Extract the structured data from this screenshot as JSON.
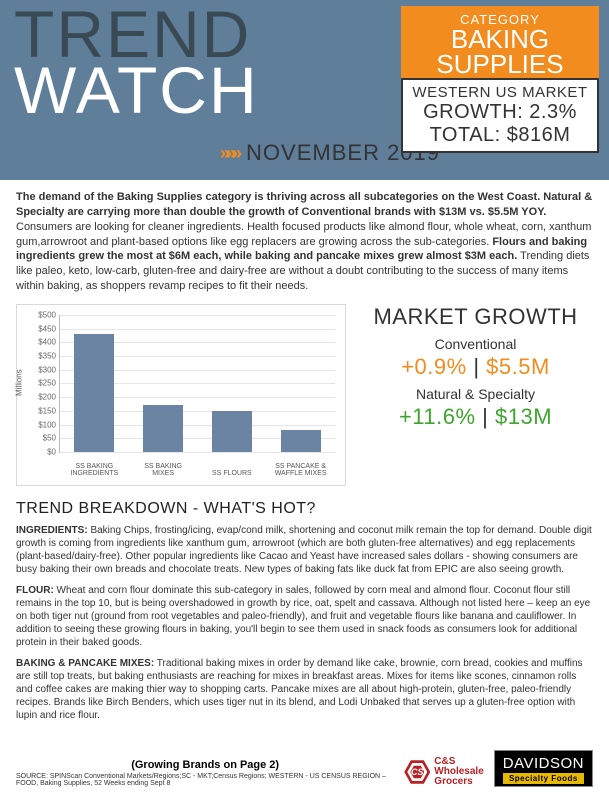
{
  "header": {
    "title_line1": "TREND",
    "title_line2": "WATCH",
    "subtitle": "NOVEMBER 2019",
    "chevrons": "»»»"
  },
  "category_box": {
    "label": "CATEGORY",
    "name_line1": "BAKING",
    "name_line2": "SUPPLIES"
  },
  "market_box": {
    "market": "WESTERN US MARKET",
    "growth": "GROWTH: 2.3%",
    "total": "TOTAL: $816M"
  },
  "intro": {
    "bold1": "The demand of the Baking Supplies category is thriving across all subcategories on the West Coast. Natural & Specialty are carrying more than double the growth of Conventional brands with $13M vs. $5.5M YOY.",
    "text1": " Consumers are looking for cleaner ingredients. Health focused products like almond flour, whole wheat, corn, xanthum gum,arrowroot and plant-based options like egg replacers are growing across the sub-categories. ",
    "bold2": "Flours and baking ingredients grew the most at $6M each, while baking and pancake mixes grew almost $3M each.",
    "text2": " Trending diets like paleo, keto, low-carb, gluten-free and dairy-free are without a doubt contributing to the success of many items within baking, as shoppers revamp recipes to fit their needs."
  },
  "chart": {
    "type": "bar",
    "y_axis_label": "Millions",
    "ylim": [
      0,
      500
    ],
    "ytick_step": 50,
    "bar_color": "#6c84a3",
    "grid_color": "#e6e6e6",
    "categories": [
      "SS BAKING INGREDIENTS",
      "SS BAKING MIXES",
      "SS FLOURS",
      "SS PANCAKE & WAFFLE MIXES"
    ],
    "values": [
      430,
      170,
      150,
      80
    ],
    "tick_prefix": "$"
  },
  "growth_panel": {
    "title": "MARKET GROWTH",
    "conv_label": "Conventional",
    "conv_pct": "+0.9%",
    "conv_amt": "$5.5M",
    "nat_label": "Natural & Specialty",
    "nat_pct": "+11.6%",
    "nat_amt": "$13M",
    "conv_color": "#f28c1e",
    "nat_color": "#3fa52e"
  },
  "breakdown": {
    "header": "TREND BREAKDOWN - WHAT'S HOT?",
    "blocks": [
      {
        "lead": "INGREDIENTS:",
        "body": " Baking Chips, frosting/icing, evap/cond milk, shortening and coconut milk remain the top for demand. Double digit growth is coming from ingredients like xanthum gum, arrowroot (which are both gluten-free alternatives) and egg replacements (plant-based/dairy-free). Other popular ingredients like Cacao and Yeast have increased sales dollars - showing consumers are busy baking their own breads and chocolate treats. New types of baking fats like duck fat from EPIC are also seeing growth."
      },
      {
        "lead": "FLOUR:",
        "body": " Wheat and corn flour dominate this sub-category in sales, followed by corn meal and almond flour. Coconut flour still remains in the top 10, but is being overshadowed in growth by rice, oat, spelt and cassava. Although not listed here – keep an eye on both tiger nut (ground from root vegetables and paleo-friendly), and fruit and vegetable flours like banana and cauliflower. In addition to seeing these growing flours in baking, you'll begin to see them used in snack foods as consumers look for additional protein in their baked goods."
      },
      {
        "lead": "BAKING & PANCAKE MIXES:",
        "body": " Traditional baking mixes in order by demand like cake, brownie, corn bread, cookies and muffins are still top treats, but baking enthusiasts are reaching for mixes in breakfast areas. Mixes for items like scones, cinnamon rolls and coffee cakes are making thier way to shopping carts. Pancake mixes are all about high-protein, gluten-free, paleo-friendly recipes. Brands like Birch Benders, which uses tiger nut in its blend, and Lodi Unbaked that serves up a gluten-free option with lupin and rice flour."
      }
    ]
  },
  "footer": {
    "page_note": "(Growing Brands on Page 2)",
    "source": "SOURCE:  SPINScan Conventional Markets/Regions;SC - MKT;Census Regions; WESTERN - US CENSUS REGION – FOOD, Baking Supplies, 52 Weeks ending Sept 8",
    "logo1_letters": "CS",
    "logo1_line1": "C&S",
    "logo1_line2": "Wholesale",
    "logo1_line3": "Grocers",
    "logo2_main": "DAVIDSON",
    "logo2_sub": "Specialty Foods"
  }
}
